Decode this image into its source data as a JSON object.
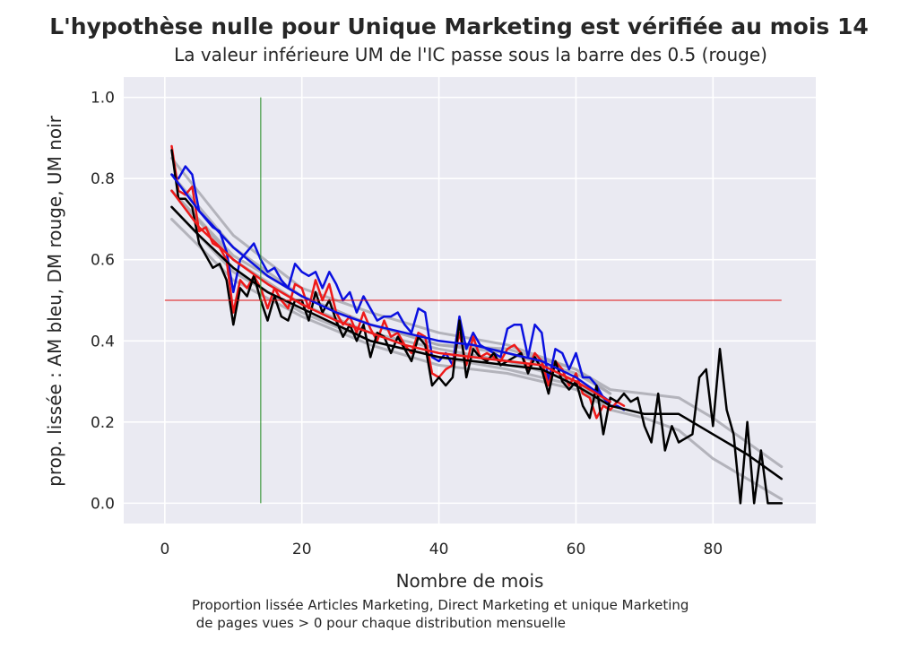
{
  "chart_data": {
    "type": "line",
    "title": "L'hypothèse nulle pour Unique Marketing est vérifiée au mois 14",
    "subtitle": "La valeur inférieure UM de l'IC passe sous la barre des 0.5 (rouge)",
    "xlabel": "Nombre de mois",
    "ylabel": "prop. lissée : AM bleu, DM rouge, UM noir",
    "caption_lines": [
      "Proportion lissée Articles Marketing, Direct Marketing et unique Marketing",
      " de pages vues > 0 pour chaque distribution mensuelle"
    ],
    "xlim": [
      -6,
      95
    ],
    "ylim": [
      -0.05,
      1.05
    ],
    "xticks": [
      0,
      20,
      40,
      60,
      80
    ],
    "yticks": [
      0.0,
      0.2,
      0.4,
      0.6,
      0.8,
      1.0
    ],
    "xtick_labels": [
      "0",
      "20",
      "40",
      "60",
      "80"
    ],
    "ytick_labels": [
      "0.0",
      "0.2",
      "0.4",
      "0.6",
      "0.8",
      "1.0"
    ],
    "grid": true,
    "colors": {
      "background": "#eaeaf2",
      "grid": "#ffffff",
      "am": "#0a10e0",
      "dm": "#ee1a1a",
      "um": "#000000",
      "ci": "#a9a9b2",
      "threshold": "#e01010",
      "marker": "#1f8a1f",
      "text": "#262626"
    },
    "threshold": {
      "y": 0.5,
      "x": [
        0,
        90
      ]
    },
    "vline": {
      "x": 14,
      "y": [
        0,
        1
      ]
    },
    "series": [
      {
        "key": "am_raw",
        "x": [
          1,
          2,
          3,
          4,
          5,
          6,
          7,
          8,
          9,
          10,
          11,
          12,
          13,
          14,
          15,
          16,
          17,
          18,
          19,
          20,
          21,
          22,
          23,
          24,
          25,
          26,
          27,
          28,
          29,
          30,
          31,
          32,
          33,
          34,
          35,
          36,
          37,
          38,
          39,
          40,
          41,
          42,
          43,
          44,
          45,
          46,
          47,
          48,
          49,
          50,
          51,
          52,
          53,
          54,
          55,
          56,
          57,
          58,
          59,
          60,
          61,
          62,
          63,
          64,
          65,
          66,
          67
        ],
        "values": [
          0.81,
          0.8,
          0.83,
          0.81,
          0.72,
          0.7,
          0.68,
          0.67,
          0.62,
          0.52,
          0.6,
          0.62,
          0.64,
          0.6,
          0.57,
          0.58,
          0.55,
          0.53,
          0.59,
          0.57,
          0.56,
          0.57,
          0.53,
          0.57,
          0.54,
          0.5,
          0.52,
          0.47,
          0.51,
          0.48,
          0.45,
          0.46,
          0.46,
          0.47,
          0.44,
          0.42,
          0.48,
          0.47,
          0.36,
          0.35,
          0.37,
          0.34,
          0.46,
          0.38,
          0.42,
          0.39,
          0.38,
          0.37,
          0.36,
          0.43,
          0.44,
          0.44,
          0.36,
          0.44,
          0.42,
          0.3,
          0.38,
          0.37,
          0.33,
          0.37,
          0.31,
          0.31,
          0.29,
          0.26,
          0.24,
          0.24,
          0.23
        ]
      },
      {
        "key": "dm_raw",
        "x": [
          1,
          2,
          3,
          4,
          5,
          6,
          7,
          8,
          9,
          10,
          11,
          12,
          13,
          14,
          15,
          16,
          17,
          18,
          19,
          20,
          21,
          22,
          23,
          24,
          25,
          26,
          27,
          28,
          29,
          30,
          31,
          32,
          33,
          34,
          35,
          36,
          37,
          38,
          39,
          40,
          41,
          42,
          43,
          44,
          45,
          46,
          47,
          48,
          49,
          50,
          51,
          52,
          53,
          54,
          55,
          56,
          57,
          58,
          59,
          60,
          61,
          62,
          63,
          64,
          65,
          66,
          67
        ],
        "values": [
          0.88,
          0.77,
          0.76,
          0.78,
          0.67,
          0.68,
          0.64,
          0.63,
          0.6,
          0.47,
          0.55,
          0.53,
          0.56,
          0.53,
          0.48,
          0.53,
          0.5,
          0.48,
          0.54,
          0.53,
          0.48,
          0.55,
          0.5,
          0.54,
          0.47,
          0.44,
          0.46,
          0.42,
          0.47,
          0.43,
          0.4,
          0.45,
          0.41,
          0.42,
          0.39,
          0.37,
          0.42,
          0.41,
          0.32,
          0.31,
          0.33,
          0.34,
          0.42,
          0.34,
          0.41,
          0.36,
          0.37,
          0.36,
          0.35,
          0.38,
          0.39,
          0.37,
          0.33,
          0.37,
          0.35,
          0.29,
          0.35,
          0.33,
          0.29,
          0.32,
          0.27,
          0.26,
          0.21,
          0.24,
          0.23,
          0.25,
          0.24
        ]
      },
      {
        "key": "um_raw",
        "x": [
          1,
          2,
          3,
          4,
          5,
          6,
          7,
          8,
          9,
          10,
          11,
          12,
          13,
          14,
          15,
          16,
          17,
          18,
          19,
          20,
          21,
          22,
          23,
          24,
          25,
          26,
          27,
          28,
          29,
          30,
          31,
          32,
          33,
          34,
          35,
          36,
          37,
          38,
          39,
          40,
          41,
          42,
          43,
          44,
          45,
          46,
          47,
          48,
          49,
          50,
          51,
          52,
          53,
          54,
          55,
          56,
          57,
          58,
          59,
          60,
          61,
          62,
          63,
          64,
          65,
          66,
          67,
          68,
          69,
          70,
          71,
          72,
          73,
          74,
          75,
          76,
          77,
          78,
          79,
          80,
          81,
          82,
          83,
          84,
          85,
          86,
          87,
          88,
          89,
          90
        ],
        "values": [
          0.87,
          0.75,
          0.75,
          0.73,
          0.64,
          0.61,
          0.58,
          0.59,
          0.55,
          0.44,
          0.53,
          0.51,
          0.56,
          0.5,
          0.45,
          0.51,
          0.46,
          0.45,
          0.5,
          0.5,
          0.45,
          0.52,
          0.47,
          0.5,
          0.45,
          0.41,
          0.44,
          0.4,
          0.44,
          0.36,
          0.42,
          0.41,
          0.37,
          0.41,
          0.38,
          0.35,
          0.41,
          0.39,
          0.29,
          0.31,
          0.29,
          0.31,
          0.45,
          0.31,
          0.38,
          0.36,
          0.35,
          0.37,
          0.34,
          0.35,
          0.36,
          0.37,
          0.32,
          0.36,
          0.33,
          0.27,
          0.35,
          0.3,
          0.28,
          0.3,
          0.24,
          0.21,
          0.29,
          0.17,
          0.26,
          0.25,
          0.27,
          0.25,
          0.26,
          0.19,
          0.15,
          0.27,
          0.13,
          0.19,
          0.15,
          0.16,
          0.17,
          0.31,
          0.33,
          0.19,
          0.38,
          0.23,
          0.17,
          0.0,
          0.2,
          0.0,
          0.13,
          0.0,
          0.0,
          0.0
        ]
      },
      {
        "key": "am_smooth",
        "x": [
          1,
          5,
          10,
          15,
          20,
          25,
          30,
          35,
          40,
          45,
          50,
          55,
          60,
          65
        ],
        "values": [
          0.81,
          0.72,
          0.63,
          0.56,
          0.51,
          0.47,
          0.44,
          0.42,
          0.4,
          0.39,
          0.37,
          0.35,
          0.31,
          0.25
        ]
      },
      {
        "key": "dm_smooth",
        "x": [
          1,
          5,
          10,
          15,
          20,
          25,
          30,
          35,
          40,
          45,
          50,
          55,
          60,
          65
        ],
        "values": [
          0.77,
          0.68,
          0.6,
          0.54,
          0.49,
          0.45,
          0.42,
          0.39,
          0.37,
          0.36,
          0.35,
          0.34,
          0.3,
          0.25
        ]
      },
      {
        "key": "um_smooth",
        "x": [
          1,
          5,
          10,
          15,
          20,
          25,
          30,
          35,
          40,
          45,
          50,
          55,
          60,
          65,
          70,
          75,
          80,
          85,
          90
        ],
        "values": [
          0.73,
          0.66,
          0.58,
          0.52,
          0.48,
          0.44,
          0.4,
          0.38,
          0.36,
          0.35,
          0.34,
          0.33,
          0.29,
          0.24,
          0.22,
          0.22,
          0.17,
          0.12,
          0.06
        ]
      },
      {
        "key": "um_ci_upper",
        "x": [
          1,
          10,
          20,
          30,
          40,
          50,
          60,
          65,
          70,
          75,
          80,
          85,
          90
        ],
        "values": [
          0.77,
          0.61,
          0.51,
          0.44,
          0.39,
          0.38,
          0.33,
          0.28,
          0.27,
          0.26,
          0.21,
          0.15,
          0.09
        ]
      },
      {
        "key": "um_ci_lower",
        "x": [
          1,
          10,
          20,
          30,
          40,
          50,
          60,
          65,
          70,
          75,
          80,
          85,
          90
        ],
        "values": [
          0.7,
          0.55,
          0.46,
          0.39,
          0.34,
          0.32,
          0.28,
          0.23,
          0.21,
          0.18,
          0.11,
          0.06,
          0.01
        ]
      },
      {
        "key": "am_ci_upper",
        "x": [
          1,
          10,
          20,
          30,
          40,
          50,
          60,
          65
        ],
        "values": [
          0.85,
          0.66,
          0.53,
          0.47,
          0.42,
          0.39,
          0.33,
          0.27
        ]
      },
      {
        "key": "am_ci_lower",
        "x": [
          1,
          10,
          20,
          30,
          40,
          50,
          60,
          65
        ],
        "values": [
          0.77,
          0.6,
          0.49,
          0.42,
          0.38,
          0.35,
          0.3,
          0.24
        ]
      },
      {
        "key": "dm_ci_upper",
        "x": [
          1,
          10,
          20,
          30,
          40,
          50,
          60,
          65
        ],
        "values": [
          0.81,
          0.63,
          0.51,
          0.44,
          0.39,
          0.37,
          0.32,
          0.27
        ]
      },
      {
        "key": "dm_ci_lower",
        "x": [
          1,
          10,
          20,
          30,
          40,
          50,
          60,
          65
        ],
        "values": [
          0.73,
          0.57,
          0.47,
          0.4,
          0.36,
          0.33,
          0.29,
          0.23
        ]
      }
    ]
  }
}
